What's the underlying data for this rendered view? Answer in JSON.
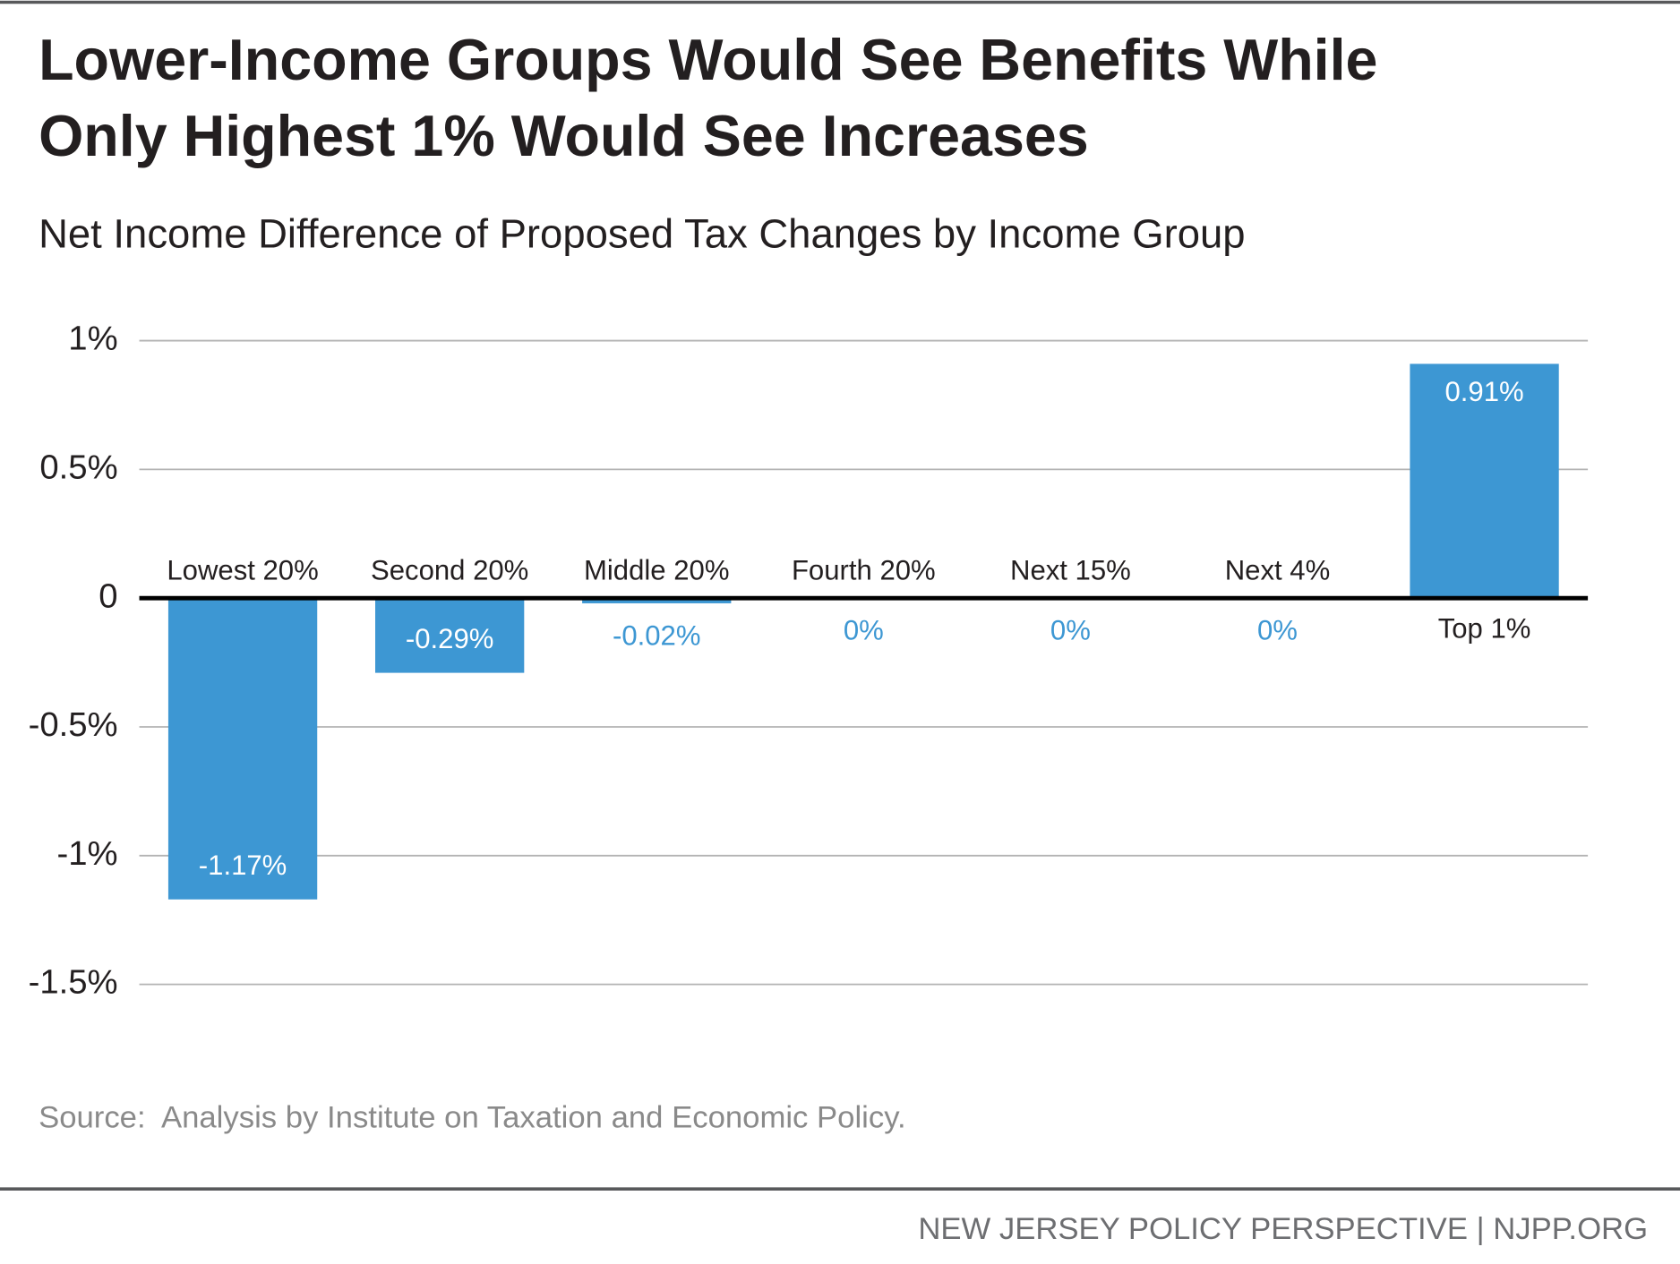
{
  "chart_data": {
    "type": "bar",
    "title": [
      "Lower-Income Groups Would See Benefits While",
      "Only Highest 1% Would See Increases"
    ],
    "subtitle": "Net Income Difference of Proposed Tax Changes by Income Group",
    "categories": [
      "Lowest 20%",
      "Second 20%",
      "Middle 20%",
      "Fourth 20%",
      "Next 15%",
      "Next 4%",
      "Top 1%"
    ],
    "values": [
      -1.17,
      -0.29,
      -0.02,
      0,
      0,
      0,
      0.91
    ],
    "value_labels": [
      "-1.17%",
      "-0.29%",
      "-0.02%",
      "0%",
      "0%",
      "0%",
      "0.91%"
    ],
    "color": "#3d97d3",
    "ylim": [
      -1.5,
      1
    ],
    "yticks": [
      {
        "value": 1,
        "label": "1%"
      },
      {
        "value": 0.5,
        "label": "0.5%"
      },
      0,
      {
        "value": -0.5,
        "label": "-0.5%"
      },
      {
        "value": -1,
        "label": "-1%"
      },
      {
        "value": -1.5,
        "label": "-1.5%"
      }
    ],
    "grid": true,
    "source": "Source:  Analysis by Institute on Taxation and Economic Policy.",
    "footer": "NEW JERSEY POLICY PERSPECTIVE | NJPP.ORG"
  }
}
